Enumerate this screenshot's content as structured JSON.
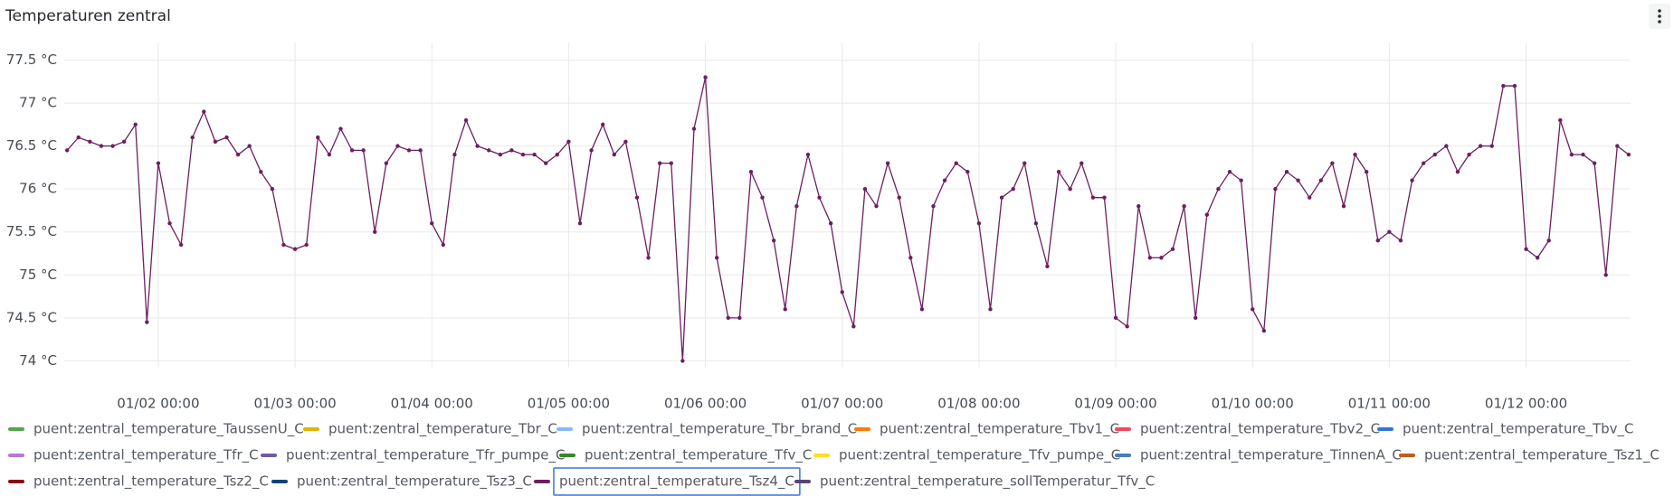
{
  "chart_data": {
    "type": "line",
    "title": "Temperaturen zentral",
    "x": [
      "01/01 08:00",
      "01/01 10:00",
      "01/01 12:00",
      "01/01 14:00",
      "01/01 16:00",
      "01/01 18:00",
      "01/01 20:00",
      "01/01 22:00",
      "01/02 00:00",
      "01/02 02:00",
      "01/02 04:00",
      "01/02 06:00",
      "01/02 08:00",
      "01/02 10:00",
      "01/02 12:00",
      "01/02 14:00",
      "01/02 16:00",
      "01/02 18:00",
      "01/02 20:00",
      "01/02 22:00",
      "01/03 00:00",
      "01/03 02:00",
      "01/03 04:00",
      "01/03 06:00",
      "01/03 08:00",
      "01/03 10:00",
      "01/03 12:00",
      "01/03 14:00",
      "01/03 16:00",
      "01/03 18:00",
      "01/03 20:00",
      "01/03 22:00",
      "01/04 00:00",
      "01/04 02:00",
      "01/04 04:00",
      "01/04 06:00",
      "01/04 08:00",
      "01/04 10:00",
      "01/04 12:00",
      "01/04 14:00",
      "01/04 16:00",
      "01/04 18:00",
      "01/04 20:00",
      "01/04 22:00",
      "01/05 00:00",
      "01/05 02:00",
      "01/05 04:00",
      "01/05 06:00",
      "01/05 08:00",
      "01/05 10:00",
      "01/05 12:00",
      "01/05 14:00",
      "01/05 16:00",
      "01/05 18:00",
      "01/05 20:00",
      "01/05 22:00",
      "01/06 00:00",
      "01/06 02:00",
      "01/06 04:00",
      "01/06 06:00",
      "01/06 08:00",
      "01/06 10:00",
      "01/06 12:00",
      "01/06 14:00",
      "01/06 16:00",
      "01/06 18:00",
      "01/06 20:00",
      "01/06 22:00",
      "01/07 00:00",
      "01/07 02:00",
      "01/07 04:00",
      "01/07 06:00",
      "01/07 08:00",
      "01/07 10:00",
      "01/07 12:00",
      "01/07 14:00",
      "01/07 16:00",
      "01/07 18:00",
      "01/07 20:00",
      "01/07 22:00",
      "01/08 00:00",
      "01/08 02:00",
      "01/08 04:00",
      "01/08 06:00",
      "01/08 08:00",
      "01/08 10:00",
      "01/08 12:00",
      "01/08 14:00",
      "01/08 16:00",
      "01/08 18:00",
      "01/08 20:00",
      "01/08 22:00",
      "01/09 00:00",
      "01/09 02:00",
      "01/09 04:00",
      "01/09 06:00",
      "01/09 08:00",
      "01/09 10:00",
      "01/09 12:00",
      "01/09 14:00",
      "01/09 16:00",
      "01/09 18:00",
      "01/09 20:00",
      "01/09 22:00",
      "01/10 00:00",
      "01/10 02:00",
      "01/10 04:00",
      "01/10 06:00",
      "01/10 08:00",
      "01/10 10:00",
      "01/10 12:00",
      "01/10 14:00",
      "01/10 16:00",
      "01/10 18:00",
      "01/10 20:00",
      "01/10 22:00",
      "01/11 00:00",
      "01/11 02:00",
      "01/11 04:00",
      "01/11 06:00",
      "01/11 08:00",
      "01/11 10:00",
      "01/11 12:00",
      "01/11 14:00",
      "01/11 16:00",
      "01/11 18:00",
      "01/11 20:00",
      "01/11 22:00",
      "01/12 00:00",
      "01/12 02:00",
      "01/12 04:00",
      "01/12 06:00",
      "01/12 08:00",
      "01/12 10:00",
      "01/12 12:00",
      "01/12 14:00",
      "01/12 16:00",
      "01/12 18:00"
    ],
    "xlim": [
      "01/01 07:30",
      "01/12 18:20"
    ],
    "xticks": [
      "01/02 00:00",
      "01/03 00:00",
      "01/04 00:00",
      "01/05 00:00",
      "01/06 00:00",
      "01/07 00:00",
      "01/08 00:00",
      "01/09 00:00",
      "01/10 00:00",
      "01/11 00:00",
      "01/12 00:00"
    ],
    "ylim": [
      73.92,
      77.6
    ],
    "yticks": [
      {
        "value": 74,
        "label": "74 °C"
      },
      {
        "value": 74.5,
        "label": "74.5 °C"
      },
      {
        "value": 75,
        "label": "75 °C"
      },
      {
        "value": 75.5,
        "label": "75.5 °C"
      },
      {
        "value": 76,
        "label": "76 °C"
      },
      {
        "value": 76.5,
        "label": "76.5 °C"
      },
      {
        "value": 77,
        "label": "77 °C"
      },
      {
        "value": 77.5,
        "label": "77.5 °C"
      }
    ],
    "grid": true,
    "series": [
      {
        "name": "puent:zentral_temperature_TaussenU_C",
        "color": "#56a64b"
      },
      {
        "name": "puent:zentral_temperature_Tbr_C",
        "color": "#e0b400"
      },
      {
        "name": "puent:zentral_temperature_Tbr_brand_C",
        "color": "#8ab8ff"
      },
      {
        "name": "puent:zentral_temperature_Tbv1_C",
        "color": "#ff780a"
      },
      {
        "name": "puent:zentral_temperature_Tbv2_C",
        "color": "#f2495c"
      },
      {
        "name": "puent:zentral_temperature_Tbv_C",
        "color": "#3274d9"
      },
      {
        "name": "puent:zentral_temperature_Tfr_C",
        "color": "#b877d9"
      },
      {
        "name": "puent:zentral_temperature_Tfr_pumpe_C",
        "color": "#705da0"
      },
      {
        "name": "puent:zentral_temperature_Tfv_C",
        "color": "#37872d"
      },
      {
        "name": "puent:zentral_temperature_Tfv_pumpe_C",
        "color": "#fade2a"
      },
      {
        "name": "puent:zentral_temperature_TinnenA_C",
        "color": "#447ebc"
      },
      {
        "name": "puent:zentral_temperature_Tsz1_C",
        "color": "#c15c17"
      },
      {
        "name": "puent:zentral_temperature_Tsz2_C",
        "color": "#890f02"
      },
      {
        "name": "puent:zentral_temperature_Tsz3_C",
        "color": "#0a437c"
      },
      {
        "name": "puent:zentral_temperature_Tsz4_C",
        "color": "#6d1f62",
        "values": [
          76.45,
          76.6,
          76.55,
          76.5,
          76.5,
          76.55,
          76.75,
          74.45,
          76.3,
          75.6,
          75.35,
          76.6,
          76.9,
          76.55,
          76.6,
          76.4,
          76.5,
          76.2,
          76.0,
          75.35,
          75.3,
          75.35,
          76.6,
          76.4,
          76.7,
          76.45,
          76.45,
          75.5,
          76.3,
          76.5,
          76.45,
          76.45,
          75.6,
          75.35,
          76.4,
          76.8,
          76.5,
          76.45,
          76.4,
          76.45,
          76.4,
          76.4,
          76.3,
          76.4,
          76.55,
          75.6,
          76.45,
          76.75,
          76.4,
          76.55,
          75.9,
          75.2,
          76.3,
          76.3,
          74.0,
          76.7,
          77.3,
          75.2,
          74.5,
          74.5,
          76.2,
          75.9,
          75.4,
          74.6,
          75.8,
          76.4,
          75.9,
          75.6,
          74.8,
          74.4,
          76.0,
          75.8,
          76.3,
          75.9,
          75.2,
          74.6,
          75.8,
          76.1,
          76.3,
          76.2,
          75.6,
          74.6,
          75.9,
          76.0,
          76.3,
          75.6,
          75.1,
          76.2,
          76.0,
          76.3,
          75.9,
          75.9,
          74.5,
          74.4,
          75.8,
          75.2,
          75.2,
          75.3,
          75.8,
          74.5,
          75.7,
          76.0,
          76.2,
          76.1,
          74.6,
          74.35,
          76.0,
          76.2,
          76.1,
          75.9,
          76.1,
          76.3,
          75.8,
          76.4,
          76.2,
          75.4,
          75.5,
          75.4,
          76.1,
          76.3,
          76.4,
          76.5,
          76.2,
          76.4,
          76.5,
          76.5,
          77.2,
          77.2,
          75.3,
          75.2,
          75.4,
          76.8,
          76.4,
          76.4,
          76.3,
          75.0,
          76.5,
          76.4
        ]
      },
      {
        "name": "puent:zentral_temperature_sollTemperatur_Tfv_C",
        "color": "#584477"
      }
    ]
  }
}
